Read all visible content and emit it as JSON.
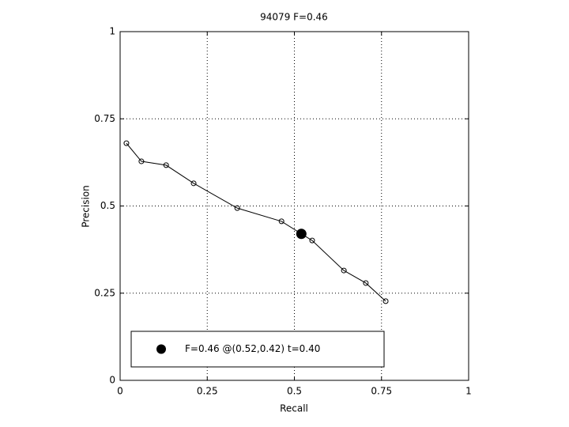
{
  "chart_data": {
    "type": "line",
    "title": "94079 F=0.46",
    "x_label": "Recall",
    "y_label": "Precision",
    "xlim": [
      0,
      1
    ],
    "ylim": [
      0,
      1
    ],
    "xticks": [
      0,
      0.25,
      0.5,
      0.75,
      1
    ],
    "yticks": [
      0,
      0.25,
      0.5,
      0.75,
      1
    ],
    "grid": true,
    "series": [
      {
        "color": "#000000",
        "marker": "open-circle",
        "x": [
          0.018,
          0.061,
          0.132,
          0.211,
          0.336,
          0.463,
          0.551,
          0.642,
          0.705,
          0.762
        ],
        "values": [
          0.68,
          0.628,
          0.617,
          0.565,
          0.494,
          0.456,
          0.401,
          0.315,
          0.279,
          0.227
        ]
      },
      {
        "name": "F=0.46 @(0.52,0.42) t=0.40",
        "color": "#000000",
        "marker": "filled-circle",
        "x": [
          0.52
        ],
        "values": [
          0.42
        ]
      }
    ],
    "legend": "lower left"
  }
}
